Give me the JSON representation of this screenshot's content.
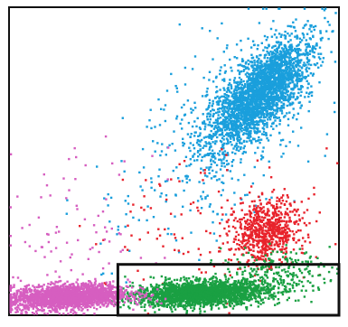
{
  "chart_data": {
    "type": "scatter",
    "title": "",
    "xlabel": "",
    "ylabel": "",
    "xlim": [
      0,
      100
    ],
    "ylim": [
      0,
      100
    ],
    "grid": false,
    "legend": "none",
    "series": [
      {
        "color": "#1a9fdc",
        "clusters": [
          {
            "cx": 76,
            "cy": 72,
            "sx": 6,
            "sy": 9,
            "tilt": 0.55,
            "n": 2600
          },
          {
            "cx": 64,
            "cy": 58,
            "sx": 14,
            "sy": 18,
            "tilt": 0.4,
            "n": 420
          }
        ]
      },
      {
        "color": "#e8232c",
        "clusters": [
          {
            "cx": 78,
            "cy": 27,
            "sx": 5,
            "sy": 5,
            "tilt": 0.1,
            "n": 700
          },
          {
            "cx": 60,
            "cy": 30,
            "sx": 18,
            "sy": 12,
            "tilt": 0.2,
            "n": 110
          }
        ]
      },
      {
        "color": "#1aa043",
        "clusters": [
          {
            "cx": 58,
            "cy": 7,
            "sx": 10,
            "sy": 2,
            "tilt": 0.12,
            "n": 2200
          },
          {
            "cx": 80,
            "cy": 13,
            "sx": 8,
            "sy": 4,
            "tilt": 0.1,
            "n": 260
          }
        ]
      },
      {
        "color": "#d65ec0",
        "clusters": [
          {
            "cx": 18,
            "cy": 6,
            "sx": 9,
            "sy": 2,
            "tilt": 0.15,
            "n": 2000
          },
          {
            "cx": 20,
            "cy": 25,
            "sx": 12,
            "sy": 14,
            "tilt": 0.0,
            "n": 90
          }
        ]
      }
    ],
    "gate": {
      "x": [
        33,
        100
      ],
      "y": [
        0,
        16.5
      ],
      "color": "#111111"
    }
  }
}
